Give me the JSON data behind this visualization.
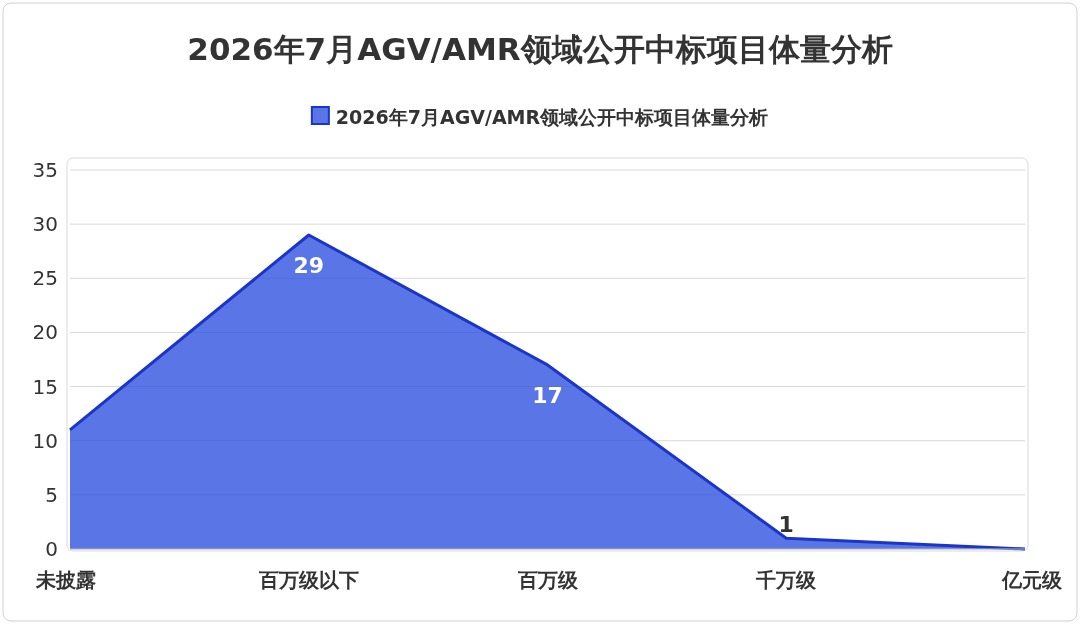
{
  "chart_data": {
    "type": "area",
    "title": "2026年7月AGV/AMR领域公开中标项目体量分析",
    "categories": [
      "未披露",
      "百万级以下",
      "百万级",
      "千万级",
      "亿元级"
    ],
    "series": [
      {
        "name": "2026年7月AGV/AMR领域公开中标项目体量分析",
        "color": "#3152e0",
        "values": [
          11,
          29,
          17,
          1,
          0
        ],
        "value_labels": [
          null,
          "29",
          "17",
          "1",
          null
        ]
      }
    ],
    "ylim": [
      0,
      35
    ],
    "yticks": [
      0,
      5,
      10,
      15,
      20,
      25,
      30,
      35
    ],
    "grid": "y",
    "legend": "top"
  }
}
